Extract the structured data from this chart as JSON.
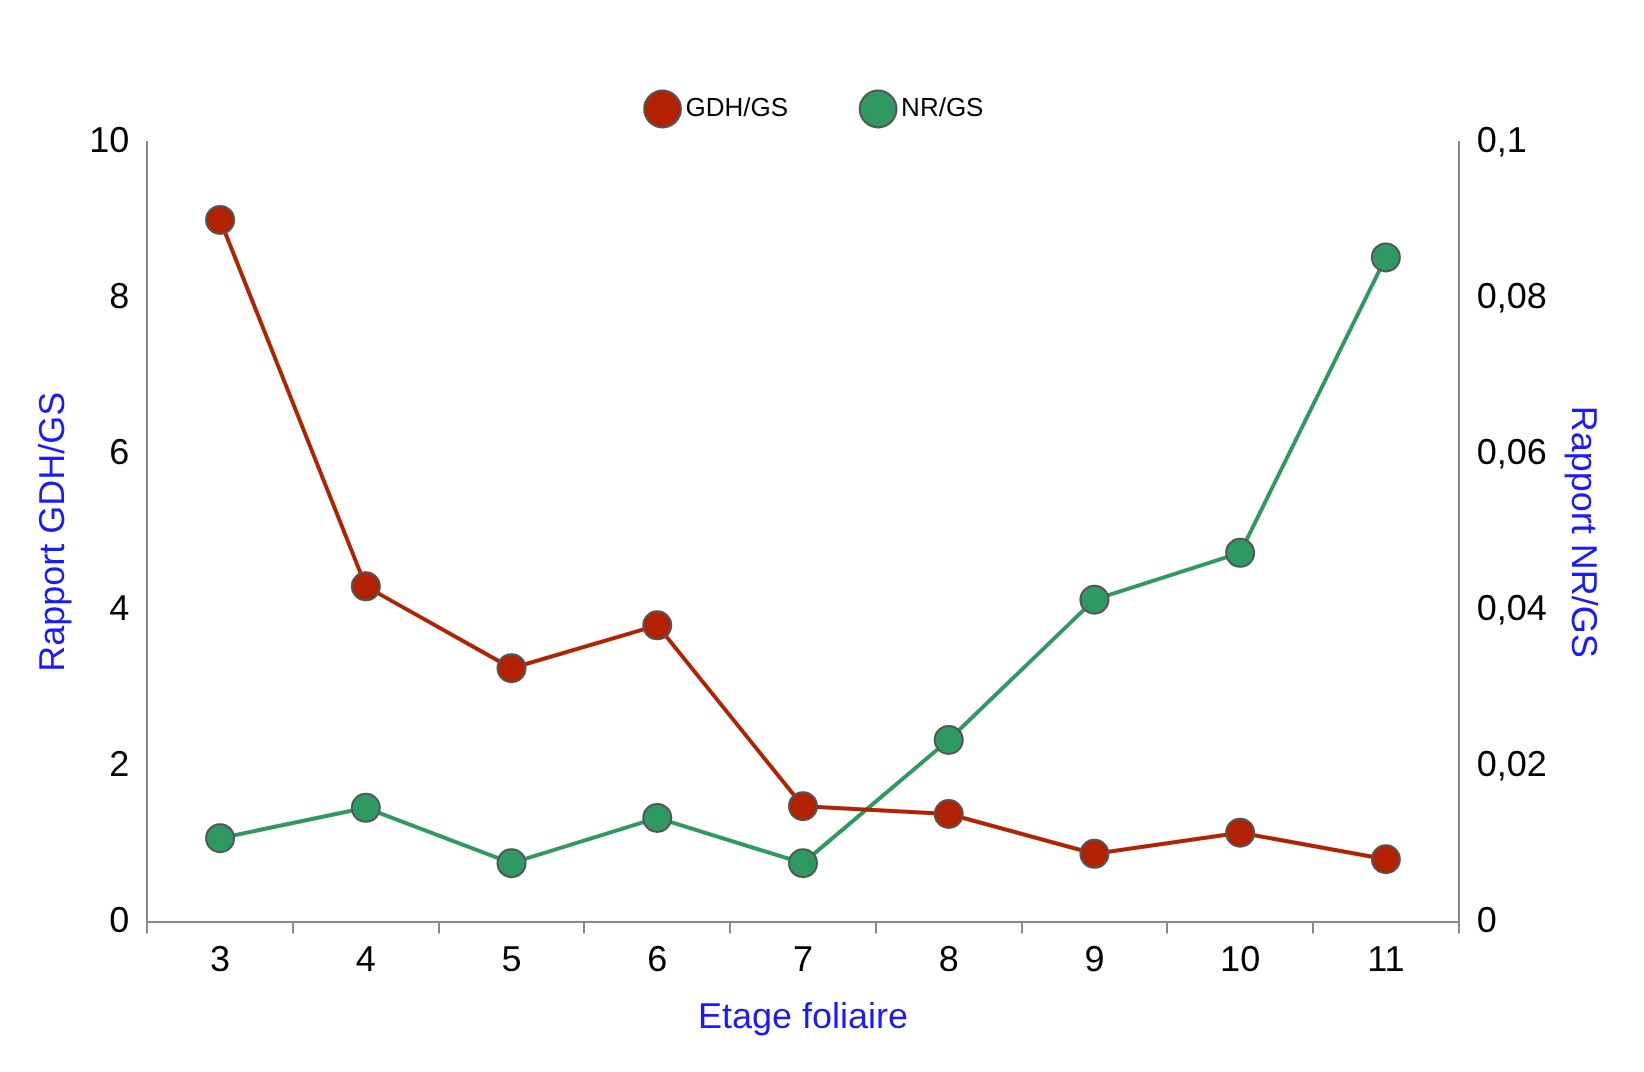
{
  "chart_data": {
    "type": "line",
    "xlabel": "Etage foliaire",
    "ylabel": "Rapport GDH/GS",
    "y2label": "Rapport NR/GS",
    "categories": [
      "3",
      "4",
      "5",
      "6",
      "7",
      "8",
      "9",
      "10",
      "11"
    ],
    "series": [
      {
        "name": "GDH/GS",
        "color": "#b22200",
        "values": [
          9.0,
          4.3,
          3.25,
          3.8,
          1.48,
          1.38,
          0.87,
          1.14,
          0.8
        ]
      },
      {
        "name": "NR/GS",
        "color": "#2e9960",
        "axis": "y2",
        "values": [
          0.0107,
          0.0146,
          0.0075,
          0.0133,
          0.0075,
          0.0233,
          0.0413,
          0.0473,
          0.0852
        ]
      }
    ],
    "ylim": [
      0,
      10
    ],
    "yticks": [
      0,
      2,
      4,
      6,
      8,
      10
    ],
    "y2lim": [
      0,
      0.1
    ],
    "y2ticks": [
      {
        "value": 0,
        "label": "0"
      },
      {
        "value": 0.02,
        "label": "0,02"
      },
      {
        "value": 0.04,
        "label": "0,04"
      },
      {
        "value": 0.06,
        "label": "0,06"
      },
      {
        "value": 0.08,
        "label": "0,08"
      },
      {
        "value": 0.1,
        "label": "0,1"
      }
    ],
    "grid": false,
    "legend": "top",
    "marker": "circle",
    "line_style": "solid"
  }
}
